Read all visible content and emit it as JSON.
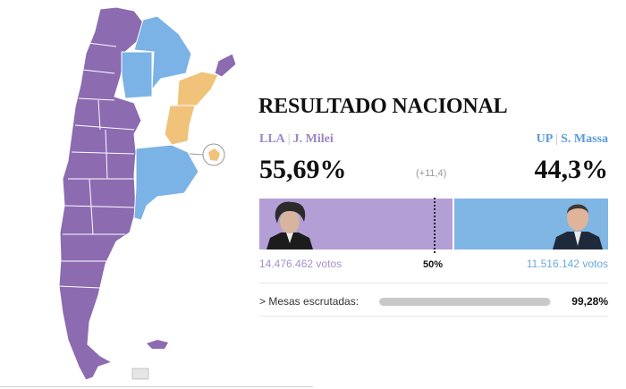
{
  "header": {
    "title": "RESULTADO NACIONAL"
  },
  "left": {
    "party": "LLA",
    "candidate": "J. Milei",
    "percent": "55,69%",
    "votes": "14.476.462 votos",
    "share": 0.5569,
    "color": "#b49ed6"
  },
  "right": {
    "party": "UP",
    "candidate": "S. Massa",
    "percent": "44,3%",
    "votes": "11.516.142 votos",
    "share": 0.443,
    "color": "#7fb6e3"
  },
  "difference": "(+11,4)",
  "half_mark": "50%",
  "mesas": {
    "label": "> Mesas escrutadas:",
    "value": "99,28%",
    "fraction": 0.9928
  },
  "map": {
    "colors": {
      "lla": "#8c6bb1",
      "up": "#7bb3e6",
      "tie": "#f0c27a"
    }
  }
}
